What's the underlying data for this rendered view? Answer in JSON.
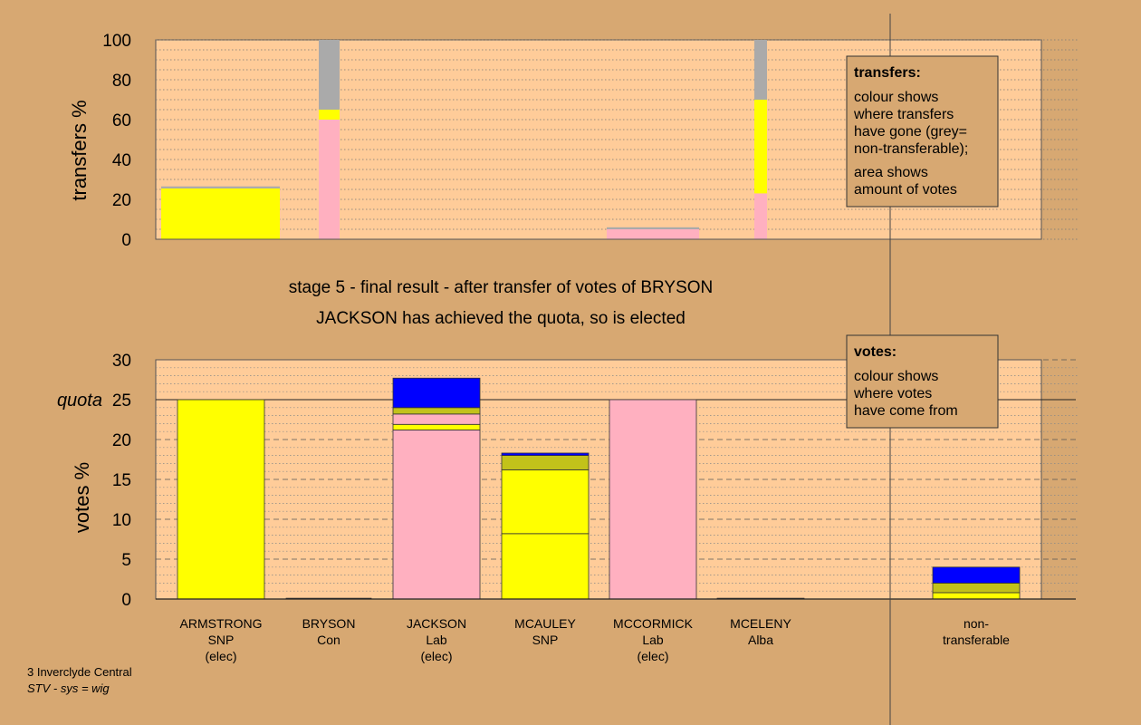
{
  "chart_data": [
    {
      "type": "bar",
      "name": "transfers",
      "ylabel": "transfers %",
      "ylim": [
        0,
        100
      ],
      "yticks": [
        0,
        20,
        40,
        60,
        80,
        100
      ],
      "grid": "dotted",
      "categories": [
        "ARMSTRONG",
        "BRYSON",
        "JACKSON",
        "MCAULEY",
        "MCCORMICK",
        "MCELENY"
      ],
      "bars": [
        {
          "category": "ARMSTRONG",
          "segments": [
            {
              "color": "#ffff00",
              "from": 0,
              "to": 2
            },
            {
              "color": "#ffff00",
              "from": 2,
              "to": 25.5
            },
            {
              "color": "#aaaaaa",
              "from": 25.5,
              "to": 26.5
            }
          ]
        },
        {
          "category": "BRYSON",
          "segments": [
            {
              "color": "#ffb0c0",
              "from": 0,
              "to": 60
            },
            {
              "color": "#ffff00",
              "from": 60,
              "to": 65
            },
            {
              "color": "#aaaaaa",
              "from": 65,
              "to": 100
            }
          ]
        },
        {
          "category": "MCCORMICK",
          "segments": [
            {
              "color": "#ffb0c0",
              "from": 0,
              "to": 5
            },
            {
              "color": "#aaaaaa",
              "from": 5,
              "to": 6
            }
          ]
        },
        {
          "category": "MCELENY",
          "segments": [
            {
              "color": "#ffb0c0",
              "from": 0,
              "to": 23
            },
            {
              "color": "#ffff00",
              "from": 23,
              "to": 70
            },
            {
              "color": "#aaaaaa",
              "from": 70,
              "to": 100
            }
          ]
        }
      ],
      "legend": {
        "title": "transfers:",
        "lines1": [
          "colour shows",
          "where transfers",
          "have gone (grey=",
          "non-transferable);"
        ],
        "lines2": [
          "area shows",
          "amount of votes"
        ]
      }
    },
    {
      "type": "bar",
      "name": "votes",
      "ylabel": "votes %",
      "ylim": [
        0,
        30
      ],
      "yticks": [
        0,
        5,
        10,
        15,
        20,
        25,
        30
      ],
      "quota": 25,
      "quota_label": "quota",
      "grid": "dashed",
      "categories": [
        {
          "name": "ARMSTRONG",
          "party": "SNP",
          "status": "(elec)"
        },
        {
          "name": "BRYSON",
          "party": "Con",
          "status": ""
        },
        {
          "name": "JACKSON",
          "party": "Lab",
          "status": "(elec)"
        },
        {
          "name": "MCAULEY",
          "party": "SNP",
          "status": ""
        },
        {
          "name": "MCCORMICK",
          "party": "Lab",
          "status": "(elec)"
        },
        {
          "name": "MCELENY",
          "party": "Alba",
          "status": ""
        },
        {
          "name": "non-",
          "party": "transferable",
          "status": ""
        }
      ],
      "bars": [
        {
          "category": "ARMSTRONG",
          "segments": [
            {
              "color": "#ffff00",
              "from": 0,
              "to": 25
            }
          ]
        },
        {
          "category": "BRYSON",
          "segments": [
            {
              "color": "#4d4d4d",
              "from": 0,
              "to": 0.1
            }
          ]
        },
        {
          "category": "JACKSON",
          "segments": [
            {
              "color": "#ffb0c0",
              "from": 0,
              "to": 21.2
            },
            {
              "color": "#ffff00",
              "from": 21.2,
              "to": 21.9
            },
            {
              "color": "#ffb0c0",
              "from": 21.9,
              "to": 23.2
            },
            {
              "color": "#c2c21a",
              "from": 23.2,
              "to": 24
            },
            {
              "color": "#0000ff",
              "from": 24,
              "to": 27.7
            }
          ]
        },
        {
          "category": "MCAULEY",
          "segments": [
            {
              "color": "#ffff00",
              "from": 0,
              "to": 8.2
            },
            {
              "color": "#ffff00",
              "from": 8.2,
              "to": 16.2
            },
            {
              "color": "#c2c21a",
              "from": 16.2,
              "to": 18
            },
            {
              "color": "#0000ff",
              "from": 18,
              "to": 18.3
            }
          ]
        },
        {
          "category": "MCCORMICK",
          "segments": [
            {
              "color": "#ffb0c0",
              "from": 0,
              "to": 25
            }
          ]
        },
        {
          "category": "MCELENY",
          "segments": [
            {
              "color": "#4d4d4d",
              "from": 0,
              "to": 0.1
            }
          ]
        },
        {
          "category": "non-transferable",
          "segments": [
            {
              "color": "#ffff00",
              "from": 0,
              "to": 0.8
            },
            {
              "color": "#c2c21a",
              "from": 0.8,
              "to": 2
            },
            {
              "color": "#0000ff",
              "from": 2,
              "to": 4
            }
          ]
        }
      ],
      "legend": {
        "title": "votes:",
        "lines1": [
          "colour shows",
          "where votes",
          "have come from"
        ]
      }
    }
  ],
  "stage_title": "stage 5 - final result - after transfer of votes of BRYSON",
  "stage_subtitle": "JACKSON has achieved the quota, so is elected",
  "footer": {
    "line1": "3 Inverclyde Central",
    "line2": "STV - sys = wig"
  },
  "colors": {
    "background": "#d7a872",
    "plot_area": "#ffcc99",
    "legend_box": "#d7a872"
  }
}
